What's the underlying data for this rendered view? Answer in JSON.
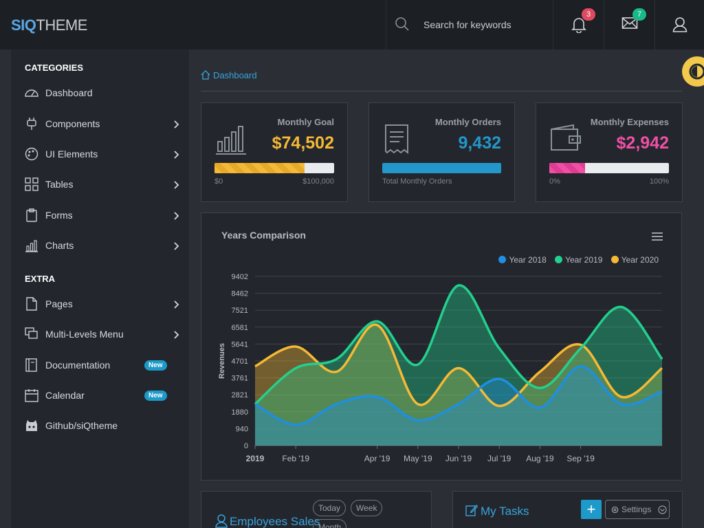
{
  "brand": {
    "part1": "SIQ",
    "part2": "THEME"
  },
  "search": {
    "placeholder": "Search for keywords"
  },
  "notifications": {
    "count": "3"
  },
  "messages": {
    "count": "7"
  },
  "sidebar": {
    "categories_title": "CATEGORIES",
    "extra_title": "EXTRA",
    "items": [
      {
        "label": "Dashboard",
        "icon": "dashboard-gauge-icon"
      },
      {
        "label": "Components",
        "icon": "plug-icon"
      },
      {
        "label": "UI Elements",
        "icon": "palette-icon"
      },
      {
        "label": "Tables",
        "icon": "grid-icon"
      },
      {
        "label": "Forms",
        "icon": "clipboard-icon"
      },
      {
        "label": "Charts",
        "icon": "bar-chart-icon"
      }
    ],
    "extra_items": [
      {
        "label": "Pages",
        "icon": "page-icon"
      },
      {
        "label": "Multi-Levels Menu",
        "icon": "layers-icon"
      },
      {
        "label": "Documentation",
        "icon": "book-icon",
        "badge": "New"
      },
      {
        "label": "Calendar",
        "icon": "calendar-icon",
        "badge": "New"
      },
      {
        "label": "Github/siQtheme",
        "icon": "github-icon"
      }
    ]
  },
  "breadcrumb": {
    "label": "Dashboard"
  },
  "cards": [
    {
      "title": "Monthly Goal",
      "value": "$74,502",
      "color": "#f6b935",
      "progress": 0.75,
      "min_label": "$0",
      "max_label": "$100,000"
    },
    {
      "title": "Monthly Orders",
      "value": "9,432",
      "color": "#2397c9",
      "progress": 1.0,
      "caption": "Total Monthly Orders"
    },
    {
      "title": "Monthly Expenses",
      "value": "$2,942",
      "color": "#f04fa5",
      "progress": 0.3,
      "min_label": "0%",
      "max_label": "100%"
    }
  ],
  "chart_data": {
    "type": "area",
    "title": "Years Comparison",
    "ylabel": "Revenues",
    "ylim": [
      0,
      9402
    ],
    "yticks": [
      "0",
      "940",
      "1880",
      "2821",
      "3761",
      "4701",
      "5641",
      "6581",
      "7521",
      "8462",
      "9402"
    ],
    "x_labels": [
      "2019",
      "Feb '19",
      "Apr '19",
      "May '19",
      "Jun '19",
      "Jul '19",
      "Aug '19",
      "Sep '19"
    ],
    "x_label_pos": [
      0,
      1,
      3,
      4,
      5,
      6,
      7,
      8
    ],
    "legend_position": "top-right",
    "series": [
      {
        "name": "Year 2018",
        "color": "#1e8fe1",
        "values": [
          2300,
          1150,
          2300,
          2700,
          1400,
          2300,
          3700,
          2100,
          4400,
          2300,
          3000
        ]
      },
      {
        "name": "Year 2019",
        "color": "#23d08f",
        "values": [
          2300,
          4300,
          4800,
          6900,
          4500,
          8900,
          5400,
          3200,
          5400,
          7700,
          4800
        ]
      },
      {
        "name": "Year 2020",
        "color": "#f6b935",
        "values": [
          4400,
          5500,
          4100,
          6700,
          2300,
          4300,
          2200,
          4100,
          5600,
          2700,
          4300
        ]
      }
    ]
  },
  "employees": {
    "title": "Employees Sales",
    "chips": [
      "Today",
      "Week",
      "Month"
    ]
  },
  "tasks": {
    "title": "My Tasks",
    "add_label": "+",
    "settings_label": "Settings"
  }
}
